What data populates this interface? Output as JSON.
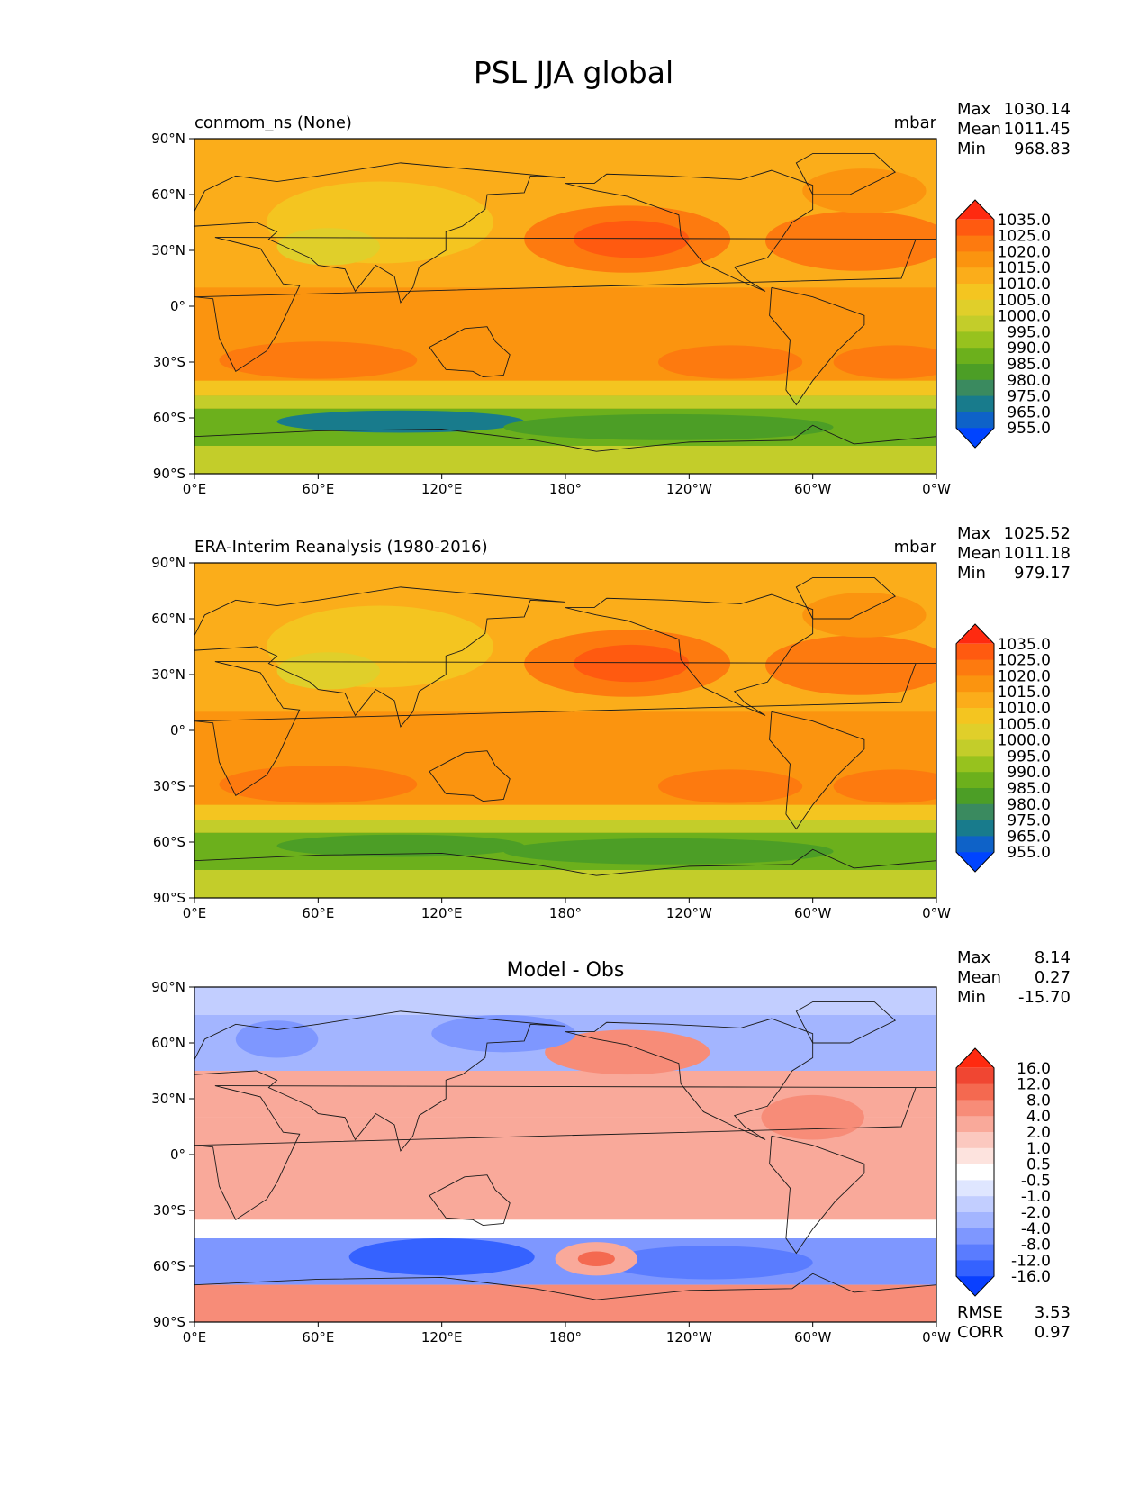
{
  "title": "PSL JJA global",
  "chart_data": [
    {
      "type": "heatmap",
      "name": "model",
      "title": "conmom_ns (None)",
      "units": "mbar",
      "stats": {
        "max_label": "Max",
        "max": "1030.14",
        "mean_label": "Mean",
        "mean": "1011.45",
        "min_label": "Min",
        "min": "968.83"
      },
      "x_ticks": [
        "0°E",
        "60°E",
        "120°E",
        "180°",
        "120°W",
        "60°W",
        "0°W"
      ],
      "y_ticks": [
        "90°N",
        "60°N",
        "30°N",
        "0°",
        "30°S",
        "60°S",
        "90°S"
      ],
      "xlim": [
        0,
        360
      ],
      "ylim": [
        -90,
        90
      ],
      "colorbar": {
        "labels": [
          "1035.0",
          "1025.0",
          "1020.0",
          "1015.0",
          "1010.0",
          "1005.0",
          "1000.0",
          "995.0",
          "990.0",
          "985.0",
          "980.0",
          "975.0",
          "965.0",
          "955.0"
        ],
        "colors": [
          "#ff2a10",
          "#ff5a10",
          "#fd7a0f",
          "#fb940f",
          "#fbad1a",
          "#f4c520",
          "#e0cf2a",
          "#c3cd2a",
          "#97c21e",
          "#6cb01c",
          "#4c9e26",
          "#3a8a5f",
          "#187b8c",
          "#0e62c8",
          "#0044ff"
        ]
      }
    },
    {
      "type": "heatmap",
      "name": "obs",
      "title": "ERA-Interim Reanalysis (1980-2016)",
      "units": "mbar",
      "stats": {
        "max_label": "Max",
        "max": "1025.52",
        "mean_label": "Mean",
        "mean": "1011.18",
        "min_label": "Min",
        "min": "979.17"
      },
      "x_ticks": [
        "0°E",
        "60°E",
        "120°E",
        "180°",
        "120°W",
        "60°W",
        "0°W"
      ],
      "y_ticks": [
        "90°N",
        "60°N",
        "30°N",
        "0°",
        "30°S",
        "60°S",
        "90°S"
      ],
      "xlim": [
        0,
        360
      ],
      "ylim": [
        -90,
        90
      ],
      "colorbar": {
        "labels": [
          "1035.0",
          "1025.0",
          "1020.0",
          "1015.0",
          "1010.0",
          "1005.0",
          "1000.0",
          "995.0",
          "990.0",
          "985.0",
          "980.0",
          "975.0",
          "965.0",
          "955.0"
        ],
        "colors": [
          "#ff2a10",
          "#ff5a10",
          "#fd7a0f",
          "#fb940f",
          "#fbad1a",
          "#f4c520",
          "#e0cf2a",
          "#c3cd2a",
          "#97c21e",
          "#6cb01c",
          "#4c9e26",
          "#3a8a5f",
          "#187b8c",
          "#0e62c8",
          "#0044ff"
        ]
      }
    },
    {
      "type": "heatmap",
      "name": "diff",
      "title": "Model - Obs",
      "units": "",
      "stats": {
        "max_label": "Max",
        "max": "8.14",
        "mean_label": "Mean",
        "mean": "0.27",
        "min_label": "Min",
        "min": "-15.70"
      },
      "extra_stats": {
        "rmse_label": "RMSE",
        "rmse": "3.53",
        "corr_label": "CORR",
        "corr": "0.97"
      },
      "x_ticks": [
        "0°E",
        "60°E",
        "120°E",
        "180°",
        "120°W",
        "60°W",
        "0°W"
      ],
      "y_ticks": [
        "90°N",
        "60°N",
        "30°N",
        "0°",
        "30°S",
        "60°S",
        "90°S"
      ],
      "xlim": [
        0,
        360
      ],
      "ylim": [
        -90,
        90
      ],
      "colorbar": {
        "labels": [
          "16.0",
          "12.0",
          "8.0",
          "4.0",
          "2.0",
          "1.0",
          "0.5",
          "-0.5",
          "-1.0",
          "-2.0",
          "-4.0",
          "-8.0",
          "-12.0",
          "-16.0"
        ],
        "colors": [
          "#ff2a10",
          "#f04632",
          "#f46950",
          "#f78c78",
          "#f9a99a",
          "#fbc8bf",
          "#fde3de",
          "#ffffff",
          "#dfe6ff",
          "#c2ceff",
          "#a3b5ff",
          "#7e97ff",
          "#5a7cff",
          "#3562ff",
          "#0a40ff"
        ]
      }
    }
  ]
}
